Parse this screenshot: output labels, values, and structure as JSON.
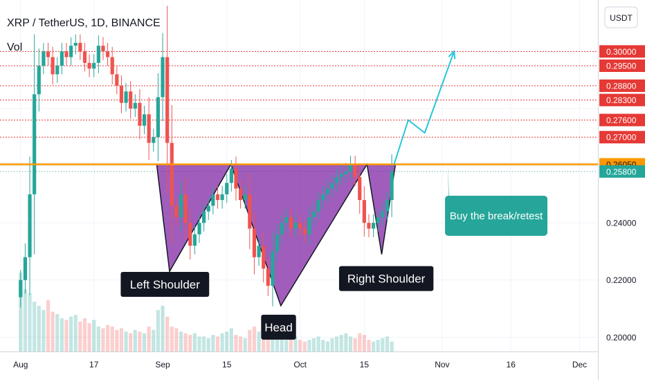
{
  "header": {
    "symbol_line": "XRP / TetherUS, 1D, BINANCE",
    "indicator": "Vol"
  },
  "currency_button": "USDT",
  "colors": {
    "up": "#26a69a",
    "down": "#ef5350",
    "pattern_fill": "#7b1fa2",
    "neckline": "#ff9800",
    "resistance": "#e53935",
    "arrow": "#26c6da",
    "callout": "#26a69a",
    "label_bg": "#131722",
    "label_text": "#ffffff",
    "current_price": "#26a69a"
  },
  "chart_data": {
    "type": "candlestick",
    "title": "XRP / TetherUS, 1D, BINANCE",
    "ylim": [
      0.195,
      0.318
    ],
    "y_ticks": [
      {
        "label": "0.30000",
        "value": 0.3,
        "style": "resistance"
      },
      {
        "label": "0.29500",
        "value": 0.295,
        "style": "resistance"
      },
      {
        "label": "0.28800",
        "value": 0.288,
        "style": "resistance"
      },
      {
        "label": "0.28300",
        "value": 0.283,
        "style": "resistance"
      },
      {
        "label": "0.27600",
        "value": 0.276,
        "style": "resistance"
      },
      {
        "label": "0.27000",
        "value": 0.27,
        "style": "resistance"
      },
      {
        "label": "0.26050",
        "value": 0.2605,
        "style": "neckline"
      },
      {
        "label": "0.25800",
        "value": 0.258,
        "style": "current"
      },
      {
        "label": "0.24000",
        "value": 0.24,
        "style": "plain"
      },
      {
        "label": "0.22000",
        "value": 0.22,
        "style": "plain"
      },
      {
        "label": "0.20000",
        "value": 0.2,
        "style": "plain"
      }
    ],
    "x_ticks": [
      {
        "label": "Aug",
        "day": 0
      },
      {
        "label": "17",
        "day": 16
      },
      {
        "label": "Sep",
        "day": 31
      },
      {
        "label": "15",
        "day": 45
      },
      {
        "label": "Oct",
        "day": 61
      },
      {
        "label": "15",
        "day": 75
      },
      {
        "label": "Nov",
        "day": 92
      },
      {
        "label": "16",
        "day": 107
      },
      {
        "label": "Dec",
        "day": 122
      }
    ],
    "x_range_days": [
      -4.5,
      126
    ],
    "closes": [
      0.22,
      0.228,
      0.25,
      0.285,
      0.295,
      0.3,
      0.298,
      0.292,
      0.295,
      0.3,
      0.298,
      0.302,
      0.303,
      0.3,
      0.296,
      0.294,
      0.296,
      0.302,
      0.3,
      0.298,
      0.292,
      0.288,
      0.282,
      0.286,
      0.28,
      0.282,
      0.274,
      0.278,
      0.268,
      0.27,
      0.284,
      0.298,
      0.268,
      0.246,
      0.242,
      0.25,
      0.24,
      0.232,
      0.236,
      0.24,
      0.244,
      0.246,
      0.25,
      0.248,
      0.25,
      0.254,
      0.259,
      0.252,
      0.248,
      0.25,
      0.238,
      0.228,
      0.232,
      0.224,
      0.218,
      0.23,
      0.236,
      0.24,
      0.242,
      0.238,
      0.24,
      0.238,
      0.236,
      0.242,
      0.244,
      0.248,
      0.25,
      0.252,
      0.254,
      0.256,
      0.257,
      0.258,
      0.2605,
      0.256,
      0.248,
      0.24,
      0.238,
      0.24,
      0.242,
      0.244,
      0.248,
      0.258
    ],
    "volumes": [
      95,
      75,
      70,
      60,
      55,
      50,
      62,
      48,
      45,
      40,
      38,
      42,
      44,
      36,
      40,
      34,
      38,
      30,
      28,
      32,
      30,
      26,
      28,
      24,
      22,
      26,
      24,
      22,
      30,
      26,
      50,
      55,
      42,
      30,
      28,
      24,
      22,
      20,
      22,
      18,
      18,
      16,
      20,
      18,
      22,
      24,
      28,
      20,
      18,
      16,
      26,
      30,
      24,
      26,
      34,
      22,
      18,
      16,
      14,
      16,
      18,
      14,
      12,
      14,
      16,
      18,
      14,
      12,
      16,
      18,
      20,
      22,
      18,
      16,
      22,
      20,
      14,
      12,
      14,
      16,
      18,
      12
    ],
    "pattern_points": [
      {
        "day": 29.7,
        "price": 0.2605
      },
      {
        "day": 32.5,
        "price": 0.223
      },
      {
        "day": 45.9,
        "price": 0.2605
      },
      {
        "day": 56.8,
        "price": 0.211
      },
      {
        "day": 75.6,
        "price": 0.2605
      },
      {
        "day": 78.8,
        "price": 0.229
      },
      {
        "day": 81.8,
        "price": 0.2605
      }
    ],
    "projection_path": [
      {
        "day": 81.5,
        "price": 0.2605
      },
      {
        "day": 84.6,
        "price": 0.276
      },
      {
        "day": 88.2,
        "price": 0.2715
      },
      {
        "day": 94.6,
        "price": 0.3
      }
    ],
    "neckline": 0.2605,
    "current_price": 0.258,
    "annotations": [
      {
        "text": "Left Shoulder",
        "day": 31.5,
        "price": 0.2185
      },
      {
        "text": "Head",
        "day": 56.3,
        "price": 0.2035
      },
      {
        "text": "Right Shoulder",
        "day": 79.8,
        "price": 0.2205
      },
      {
        "text": "Buy the break/retest",
        "day": 103.8,
        "price": 0.2425
      }
    ]
  }
}
